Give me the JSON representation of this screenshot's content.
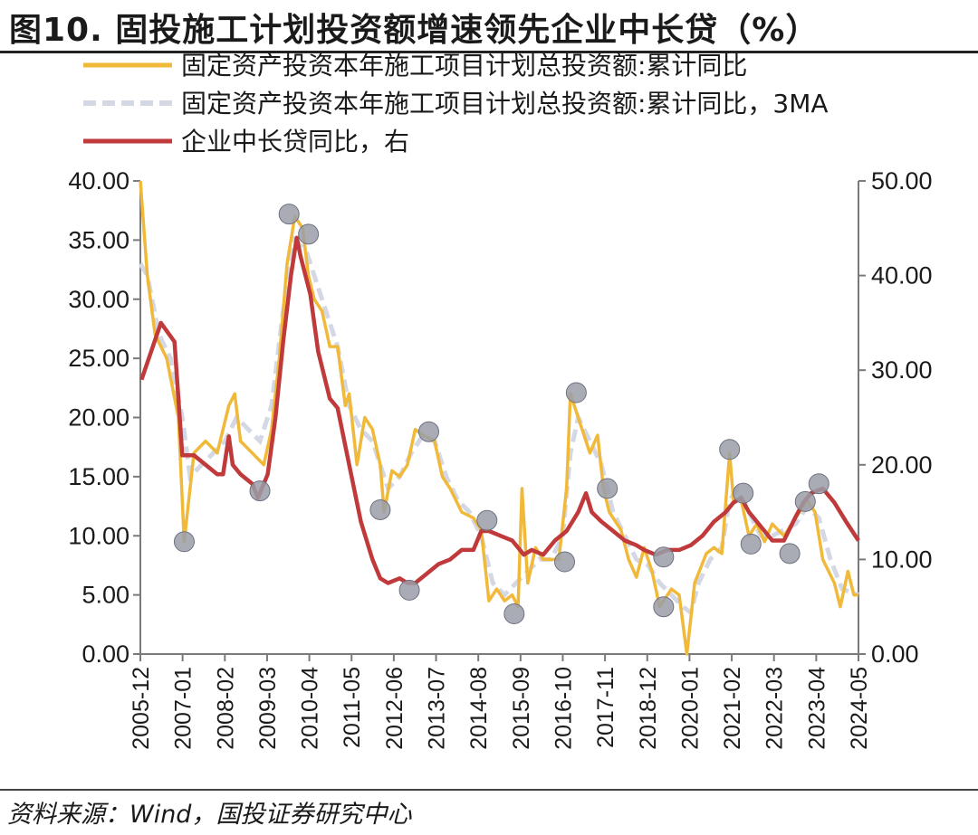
{
  "title": "图10. 固投施工计划投资额增速领先企业中长贷（%）",
  "source": "资料来源：Wind，国投证券研究中心",
  "colors": {
    "construction": "#f0b93a",
    "ma3": "#d4d8e4",
    "loan": "#c0393b",
    "marker": "#9a9ea8"
  },
  "chart_data": {
    "type": "line",
    "title": "图10. 固投施工计划投资额增速领先企业中长贷（%）",
    "y_left": {
      "ticks": [
        "40.00",
        "35.00",
        "30.00",
        "25.00",
        "20.00",
        "15.00",
        "10.00",
        "5.00",
        "0.00"
      ],
      "ylim": [
        0,
        40
      ]
    },
    "y_right": {
      "ticks": [
        "50.00",
        "40.00",
        "30.00",
        "20.00",
        "10.00",
        "0.00"
      ],
      "ylim": [
        0,
        50
      ]
    },
    "x_ticks": [
      "2005-12",
      "2007-01",
      "2008-02",
      "2009-03",
      "2010-04",
      "2011-05",
      "2012-06",
      "2013-07",
      "2014-08",
      "2015-09",
      "2016-10",
      "2017-11",
      "2018-12",
      "2020-01",
      "2021-02",
      "2022-03",
      "2023-04",
      "2024-05"
    ],
    "legend_position": "top",
    "series": [
      {
        "name": "固定资产投资本年施工项目计划总投资额:累计同比",
        "axis": "left",
        "style": "solid",
        "points": [
          [
            2005.92,
            40
          ],
          [
            2006.1,
            32
          ],
          [
            2006.3,
            27
          ],
          [
            2006.6,
            25
          ],
          [
            2006.9,
            20
          ],
          [
            2007.05,
            9.5
          ],
          [
            2007.3,
            17
          ],
          [
            2007.6,
            18
          ],
          [
            2007.9,
            17
          ],
          [
            2008.2,
            21
          ],
          [
            2008.35,
            22
          ],
          [
            2008.5,
            18
          ],
          [
            2008.8,
            17
          ],
          [
            2009.1,
            16
          ],
          [
            2009.3,
            19
          ],
          [
            2009.5,
            25
          ],
          [
            2009.7,
            33
          ],
          [
            2009.9,
            37
          ],
          [
            2010.1,
            36
          ],
          [
            2010.25,
            32
          ],
          [
            2010.4,
            30
          ],
          [
            2010.6,
            29
          ],
          [
            2010.8,
            26
          ],
          [
            2011.0,
            26
          ],
          [
            2011.2,
            21
          ],
          [
            2011.3,
            22
          ],
          [
            2011.5,
            16
          ],
          [
            2011.7,
            20
          ],
          [
            2011.9,
            19
          ],
          [
            2012.1,
            16
          ],
          [
            2012.2,
            12
          ],
          [
            2012.4,
            15.5
          ],
          [
            2012.6,
            15
          ],
          [
            2012.8,
            16
          ],
          [
            2013.0,
            19
          ],
          [
            2013.2,
            18.5
          ],
          [
            2013.5,
            18
          ],
          [
            2013.7,
            15
          ],
          [
            2013.9,
            14
          ],
          [
            2014.2,
            12
          ],
          [
            2014.5,
            11.5
          ],
          [
            2014.7,
            10.5
          ],
          [
            2014.9,
            4.5
          ],
          [
            2015.1,
            5.5
          ],
          [
            2015.3,
            4.5
          ],
          [
            2015.5,
            5
          ],
          [
            2015.65,
            4
          ],
          [
            2015.75,
            14
          ],
          [
            2015.9,
            6
          ],
          [
            2016.1,
            9
          ],
          [
            2016.3,
            8
          ],
          [
            2016.5,
            8
          ],
          [
            2016.7,
            8
          ],
          [
            2016.9,
            14
          ],
          [
            2017.0,
            22
          ],
          [
            2017.2,
            20
          ],
          [
            2017.5,
            17
          ],
          [
            2017.7,
            18.5
          ],
          [
            2017.85,
            14
          ],
          [
            2018.0,
            12
          ],
          [
            2018.3,
            10.5
          ],
          [
            2018.5,
            8
          ],
          [
            2018.7,
            6.5
          ],
          [
            2018.9,
            9
          ],
          [
            2019.1,
            7
          ],
          [
            2019.3,
            4
          ],
          [
            2019.6,
            5.5
          ],
          [
            2019.8,
            5
          ],
          [
            2020.0,
            0
          ],
          [
            2020.2,
            6
          ],
          [
            2020.5,
            8.5
          ],
          [
            2020.7,
            9
          ],
          [
            2020.9,
            8.5
          ],
          [
            2021.1,
            17
          ],
          [
            2021.2,
            13
          ],
          [
            2021.4,
            13
          ],
          [
            2021.6,
            10
          ],
          [
            2021.8,
            11
          ],
          [
            2022.0,
            9.5
          ],
          [
            2022.2,
            11
          ],
          [
            2022.5,
            10
          ],
          [
            2022.7,
            11
          ],
          [
            2022.9,
            12
          ],
          [
            2023.1,
            13
          ],
          [
            2023.3,
            12
          ],
          [
            2023.5,
            8
          ],
          [
            2023.8,
            6
          ],
          [
            2023.95,
            4
          ],
          [
            2024.15,
            7
          ],
          [
            2024.3,
            5
          ],
          [
            2024.42,
            5
          ]
        ]
      },
      {
        "name": "固定资产投资本年施工项目计划总投资额:累计同比，3MA",
        "axis": "left",
        "style": "dashed",
        "points": [
          [
            2005.92,
            33
          ],
          [
            2006.1,
            32
          ],
          [
            2006.4,
            27
          ],
          [
            2006.7,
            25
          ],
          [
            2007.0,
            20
          ],
          [
            2007.2,
            15
          ],
          [
            2007.5,
            16
          ],
          [
            2007.8,
            17
          ],
          [
            2008.1,
            18
          ],
          [
            2008.4,
            20
          ],
          [
            2008.7,
            19
          ],
          [
            2009.0,
            18
          ],
          [
            2009.3,
            21
          ],
          [
            2009.6,
            29
          ],
          [
            2009.9,
            35
          ],
          [
            2010.2,
            34
          ],
          [
            2010.5,
            31
          ],
          [
            2010.8,
            28
          ],
          [
            2011.0,
            26
          ],
          [
            2011.3,
            21
          ],
          [
            2011.6,
            19
          ],
          [
            2011.9,
            18
          ],
          [
            2012.1,
            16
          ],
          [
            2012.3,
            14
          ],
          [
            2012.6,
            15
          ],
          [
            2012.9,
            17
          ],
          [
            2013.2,
            18.5
          ],
          [
            2013.5,
            18
          ],
          [
            2013.8,
            15
          ],
          [
            2014.1,
            13
          ],
          [
            2014.4,
            12
          ],
          [
            2014.7,
            10
          ],
          [
            2015.0,
            6
          ],
          [
            2015.3,
            5
          ],
          [
            2015.6,
            6
          ],
          [
            2015.9,
            7
          ],
          [
            2016.2,
            8
          ],
          [
            2016.5,
            8
          ],
          [
            2016.8,
            10
          ],
          [
            2017.0,
            17
          ],
          [
            2017.2,
            20
          ],
          [
            2017.5,
            18
          ],
          [
            2017.8,
            16
          ],
          [
            2018.1,
            12
          ],
          [
            2018.4,
            10
          ],
          [
            2018.7,
            8
          ],
          [
            2019.0,
            7.5
          ],
          [
            2019.3,
            6
          ],
          [
            2019.6,
            5
          ],
          [
            2019.9,
            4
          ],
          [
            2020.1,
            3.5
          ],
          [
            2020.3,
            6
          ],
          [
            2020.6,
            8
          ],
          [
            2020.9,
            9
          ],
          [
            2021.1,
            13
          ],
          [
            2021.3,
            14
          ],
          [
            2021.6,
            12
          ],
          [
            2021.9,
            10
          ],
          [
            2022.2,
            10
          ],
          [
            2022.5,
            10.5
          ],
          [
            2022.8,
            11
          ],
          [
            2023.1,
            12.5
          ],
          [
            2023.4,
            11.5
          ],
          [
            2023.7,
            8
          ],
          [
            2024.0,
            5.5
          ],
          [
            2024.42,
            5
          ]
        ]
      },
      {
        "name": "企业中长贷同比，右",
        "axis": "right",
        "style": "solid",
        "points": [
          [
            2005.95,
            29
          ],
          [
            2006.2,
            32
          ],
          [
            2006.45,
            35
          ],
          [
            2006.8,
            33
          ],
          [
            2007.0,
            21
          ],
          [
            2007.3,
            21
          ],
          [
            2007.6,
            20
          ],
          [
            2007.9,
            19
          ],
          [
            2008.05,
            19
          ],
          [
            2008.2,
            23
          ],
          [
            2008.3,
            20
          ],
          [
            2008.5,
            19
          ],
          [
            2008.8,
            18
          ],
          [
            2008.95,
            16.5
          ],
          [
            2009.2,
            19
          ],
          [
            2009.4,
            25
          ],
          [
            2009.6,
            33
          ],
          [
            2009.8,
            40
          ],
          [
            2009.95,
            44
          ],
          [
            2010.05,
            42
          ],
          [
            2010.3,
            38
          ],
          [
            2010.5,
            32
          ],
          [
            2010.8,
            27
          ],
          [
            2011.0,
            26
          ],
          [
            2011.3,
            20
          ],
          [
            2011.6,
            14
          ],
          [
            2011.9,
            10
          ],
          [
            2012.1,
            8
          ],
          [
            2012.3,
            7.5
          ],
          [
            2012.6,
            8
          ],
          [
            2012.8,
            7.5
          ],
          [
            2013.0,
            7.5
          ],
          [
            2013.3,
            8.5
          ],
          [
            2013.6,
            9.5
          ],
          [
            2013.9,
            10
          ],
          [
            2014.2,
            11
          ],
          [
            2014.5,
            11
          ],
          [
            2014.7,
            13
          ],
          [
            2014.9,
            13
          ],
          [
            2015.2,
            12.5
          ],
          [
            2015.5,
            12
          ],
          [
            2015.8,
            10.5
          ],
          [
            2016.0,
            11
          ],
          [
            2016.3,
            10.5
          ],
          [
            2016.6,
            12
          ],
          [
            2016.9,
            13
          ],
          [
            2017.2,
            15
          ],
          [
            2017.4,
            17
          ],
          [
            2017.55,
            15
          ],
          [
            2017.8,
            14
          ],
          [
            2018.1,
            13
          ],
          [
            2018.4,
            12
          ],
          [
            2018.7,
            11.5
          ],
          [
            2018.9,
            11
          ],
          [
            2019.2,
            10.5
          ],
          [
            2019.5,
            11
          ],
          [
            2019.8,
            11
          ],
          [
            2020.1,
            11.5
          ],
          [
            2020.4,
            12.5
          ],
          [
            2020.7,
            14
          ],
          [
            2021.0,
            15
          ],
          [
            2021.2,
            16
          ],
          [
            2021.4,
            16.5
          ],
          [
            2021.6,
            15
          ],
          [
            2021.8,
            14
          ],
          [
            2022.0,
            13
          ],
          [
            2022.2,
            12
          ],
          [
            2022.5,
            12
          ],
          [
            2022.8,
            14.5
          ],
          [
            2023.0,
            16
          ],
          [
            2023.2,
            17
          ],
          [
            2023.5,
            17.5
          ],
          [
            2023.8,
            16
          ],
          [
            2024.1,
            14
          ],
          [
            2024.42,
            12
          ]
        ]
      }
    ],
    "highlight_markers": [
      [
        2007.05,
        9.5
      ],
      [
        2009.0,
        13.8
      ],
      [
        2009.75,
        37.2
      ],
      [
        2010.25,
        35.5
      ],
      [
        2012.1,
        12.2
      ],
      [
        2012.85,
        5.4
      ],
      [
        2013.35,
        18.8
      ],
      [
        2014.85,
        11.3
      ],
      [
        2015.55,
        3.4
      ],
      [
        2016.85,
        7.8
      ],
      [
        2017.15,
        22.1
      ],
      [
        2017.95,
        14
      ],
      [
        2019.4,
        8.2
      ],
      [
        2019.4,
        4
      ],
      [
        2021.1,
        17.3
      ],
      [
        2021.45,
        13.6
      ],
      [
        2021.65,
        9.3
      ],
      [
        2022.65,
        8.5
      ],
      [
        2023.05,
        12.9
      ],
      [
        2023.4,
        14.4
      ]
    ]
  }
}
